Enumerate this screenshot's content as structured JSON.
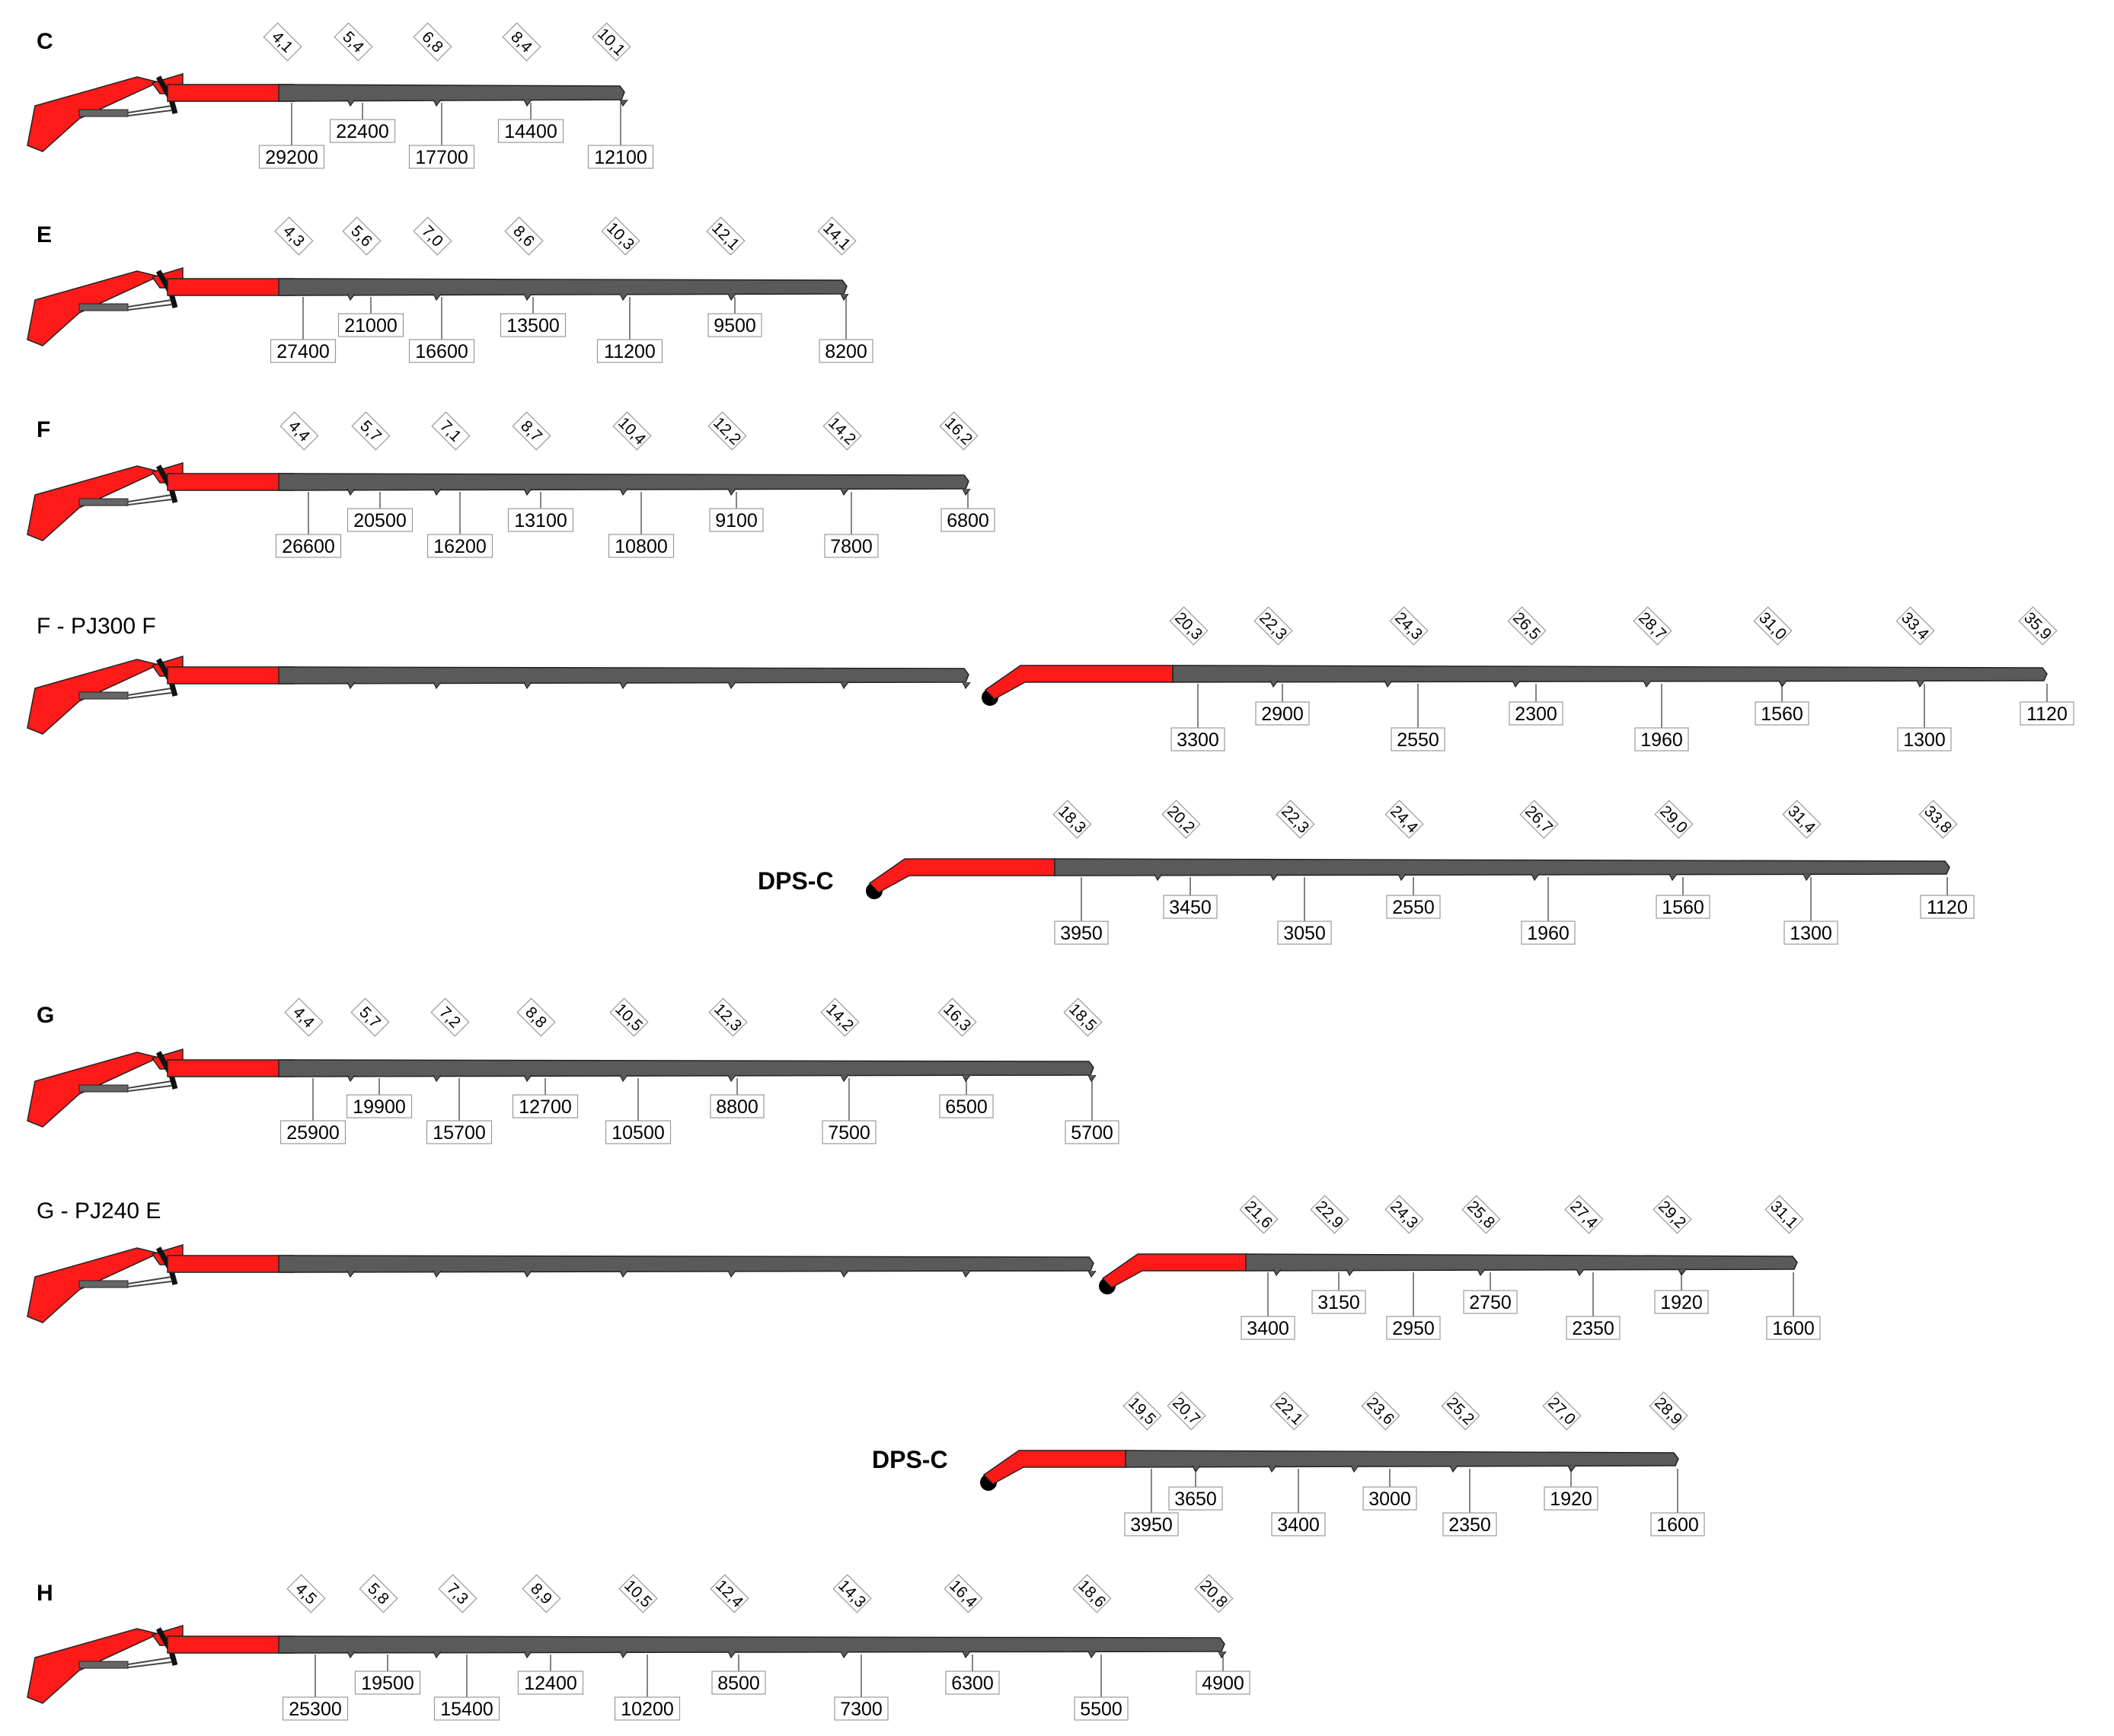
{
  "colors": {
    "boom_red": "#ff1a1a",
    "boom_dark": "#5a5a5a",
    "outline": "#222222",
    "label_box": "#ffffff",
    "label_border": "#999999"
  },
  "configs": [
    {
      "id": "C",
      "label": "C",
      "reach_m": [
        "4,1",
        "5,4",
        "6,8",
        "8,4",
        "10,1"
      ],
      "load_kg": [
        "29200",
        "22400",
        "17700",
        "14400",
        "12100"
      ]
    },
    {
      "id": "E",
      "label": "E",
      "reach_m": [
        "4,3",
        "5,6",
        "7,0",
        "8,6",
        "10,3",
        "12,1",
        "14,1"
      ],
      "load_kg": [
        "27400",
        "21000",
        "16600",
        "13500",
        "11200",
        "9500",
        "8200"
      ]
    },
    {
      "id": "F",
      "label": "F",
      "reach_m": [
        "4,4",
        "5,7",
        "7,1",
        "8,7",
        "10,4",
        "12,2",
        "14,2",
        "16,2"
      ],
      "load_kg": [
        "26600",
        "20500",
        "16200",
        "13100",
        "10800",
        "9100",
        "7800",
        "6800"
      ]
    },
    {
      "id": "F-PJ300F",
      "label": "F - PJ300 F",
      "jib": true,
      "reach_m": [
        "20,3",
        "22,3",
        "24,3",
        "26,5",
        "28,7",
        "31,0",
        "33,4",
        "35,9"
      ],
      "load_kg": [
        "3300",
        "2900",
        "2550",
        "2300",
        "1960",
        "1560",
        "1300",
        "1120"
      ]
    },
    {
      "id": "F-DPS-C",
      "label": "DPS-C",
      "dps": true,
      "reach_m": [
        "18,3",
        "20,2",
        "22,3",
        "24,4",
        "26,7",
        "29,0",
        "31,4",
        "33,8"
      ],
      "load_kg": [
        "3950",
        "3450",
        "3050",
        "2550",
        "1960",
        "1560",
        "1300",
        "1120"
      ]
    },
    {
      "id": "G",
      "label": "G",
      "reach_m": [
        "4,4",
        "5,7",
        "7,2",
        "8,8",
        "10,5",
        "12,3",
        "14,2",
        "16,3",
        "18,5"
      ],
      "load_kg": [
        "25900",
        "19900",
        "15700",
        "12700",
        "10500",
        "8800",
        "7500",
        "6500",
        "5700"
      ]
    },
    {
      "id": "G-PJ240E",
      "label": "G - PJ240 E",
      "jib": true,
      "reach_m": [
        "21,6",
        "22,9",
        "24,3",
        "25,8",
        "27,4",
        "29,2",
        "31,1"
      ],
      "load_kg": [
        "3400",
        "3150",
        "2950",
        "2750",
        "2350",
        "1920",
        "1600"
      ]
    },
    {
      "id": "G-DPS-C",
      "label": "DPS-C",
      "dps": true,
      "reach_m": [
        "19,5",
        "20,7",
        "22,1",
        "23,6",
        "25,2",
        "27,0",
        "28,9"
      ],
      "load_kg": [
        "3950",
        "3650",
        "3400",
        "3000",
        "2350",
        "1920",
        "1600"
      ]
    },
    {
      "id": "H",
      "label": "H",
      "reach_m": [
        "4,5",
        "5,8",
        "7,3",
        "8,9",
        "10,5",
        "12,4",
        "14,3",
        "16,4",
        "18,6",
        "20,8"
      ],
      "load_kg": [
        "25300",
        "19500",
        "15400",
        "12400",
        "10200",
        "8500",
        "7300",
        "6300",
        "5500",
        "4900"
      ]
    }
  ]
}
